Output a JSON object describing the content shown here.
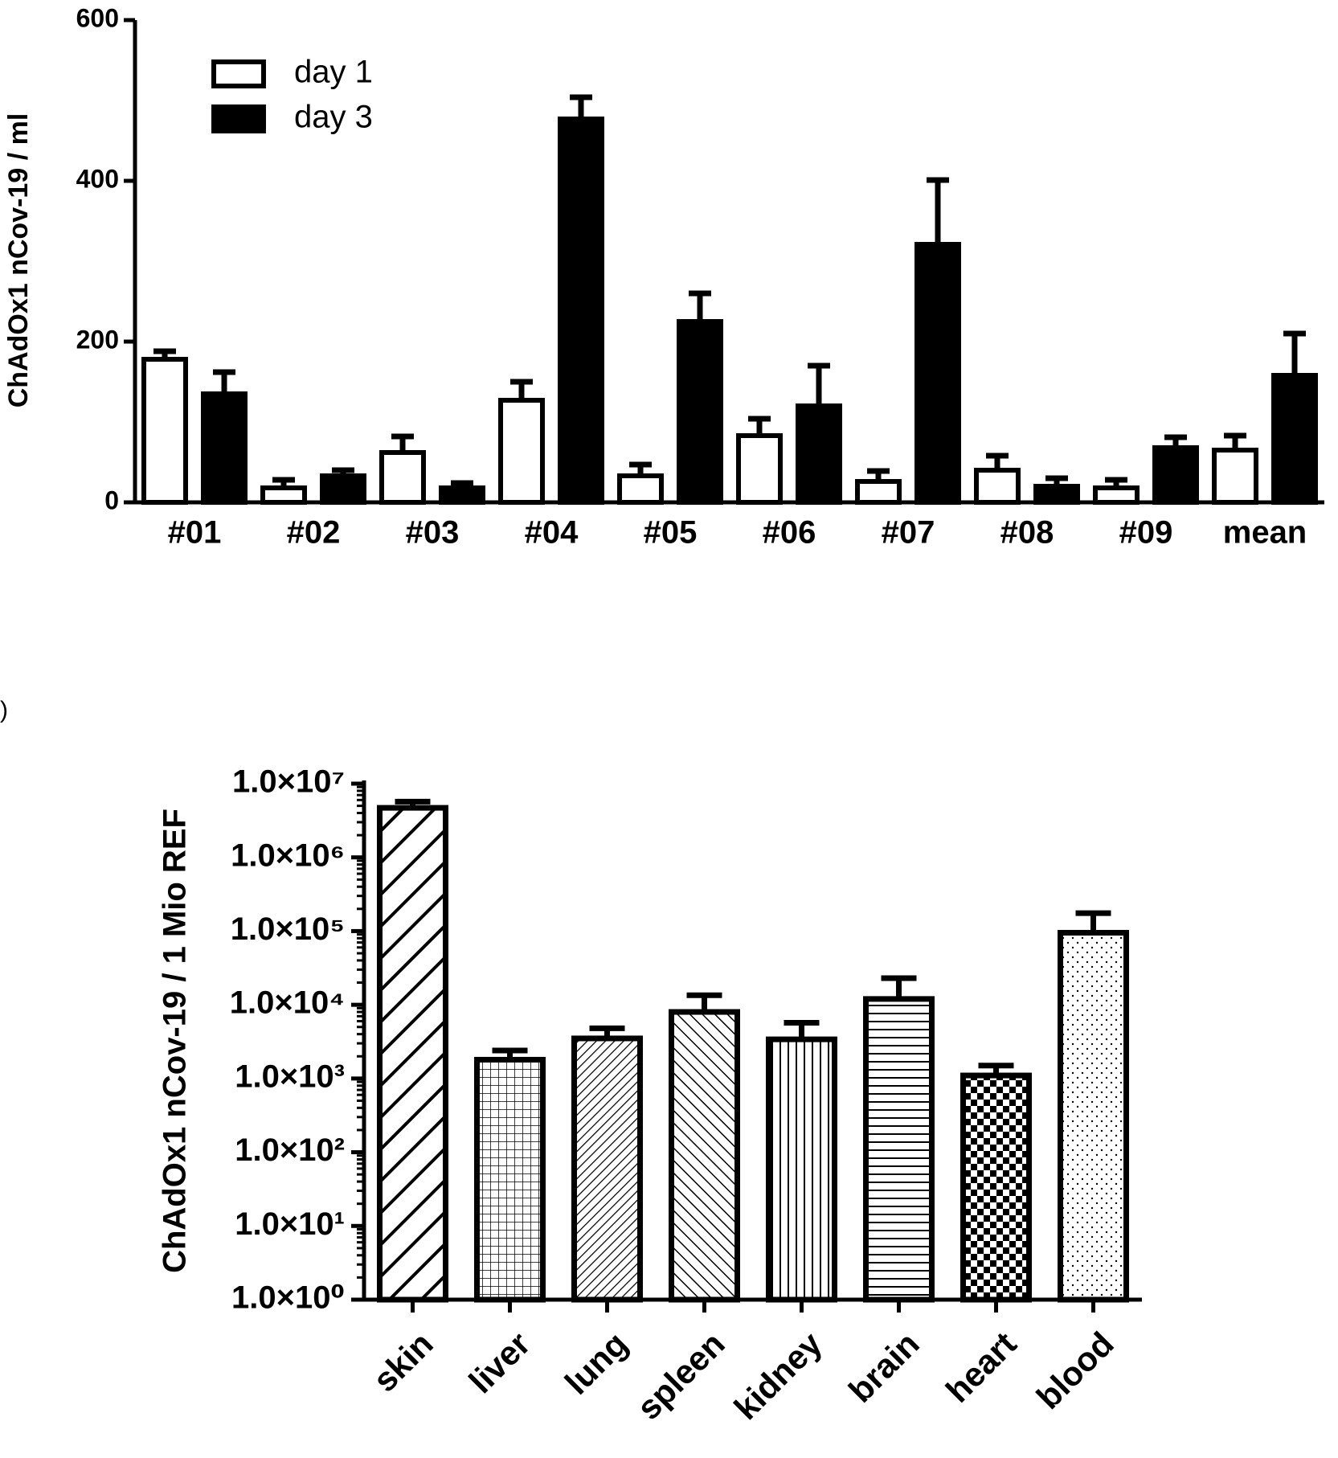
{
  "chart_data": [
    {
      "type": "bar",
      "ylabel": "ChAdOx1 nCov-19 / ml",
      "categories": [
        "#01",
        "#02",
        "#03",
        "#04",
        "#05",
        "#06",
        "#07",
        "#08",
        "#09",
        "mean"
      ],
      "series": [
        {
          "name": "day 1",
          "color": "#ffffff",
          "values": [
            178,
            18,
            62,
            127,
            33,
            83,
            26,
            40,
            18,
            65
          ],
          "errors": [
            10,
            10,
            20,
            23,
            14,
            21,
            13,
            18,
            10,
            18
          ]
        },
        {
          "name": "day 3",
          "color": "#000000",
          "values": [
            135,
            33,
            18,
            477,
            225,
            120,
            321,
            20,
            68,
            158
          ],
          "errors": [
            27,
            7,
            6,
            27,
            35,
            50,
            80,
            10,
            13,
            52
          ]
        }
      ],
      "ylim": [
        0,
        600
      ],
      "yticks": [
        0,
        200,
        400,
        600
      ],
      "legend": "top-left"
    },
    {
      "type": "bar",
      "panel_label": ")",
      "ylabel": "ChAdOx1 nCov-19 / 1 Mio REF",
      "categories": [
        "skin",
        "liver",
        "lung",
        "spleen",
        "kidney",
        "brain",
        "heart",
        "blood"
      ],
      "values": [
        4700000,
        1800,
        3500,
        8000,
        3400,
        12000,
        1100,
        95000
      ],
      "errors": [
        1000000,
        600,
        1300,
        5500,
        2300,
        11000,
        400,
        80000
      ],
      "patterns": [
        "wide-back-diagonal",
        "grid",
        "back-diagonal",
        "forward-diagonal",
        "vertical",
        "horizontal",
        "checker",
        "dots"
      ],
      "log": true,
      "ylim": [
        1,
        10000000
      ],
      "yticks": [
        {
          "value": 1,
          "label": "1.0×10⁰"
        },
        {
          "value": 10,
          "label": "1.0×10¹"
        },
        {
          "value": 100,
          "label": "1.0×10²"
        },
        {
          "value": 1000,
          "label": "1.0×10³"
        },
        {
          "value": 10000,
          "label": "1.0×10⁴"
        },
        {
          "value": 100000,
          "label": "1.0×10⁵"
        },
        {
          "value": 1000000,
          "label": "1.0×10⁶"
        },
        {
          "value": 10000000,
          "label": "1.0×10⁷"
        }
      ]
    }
  ]
}
